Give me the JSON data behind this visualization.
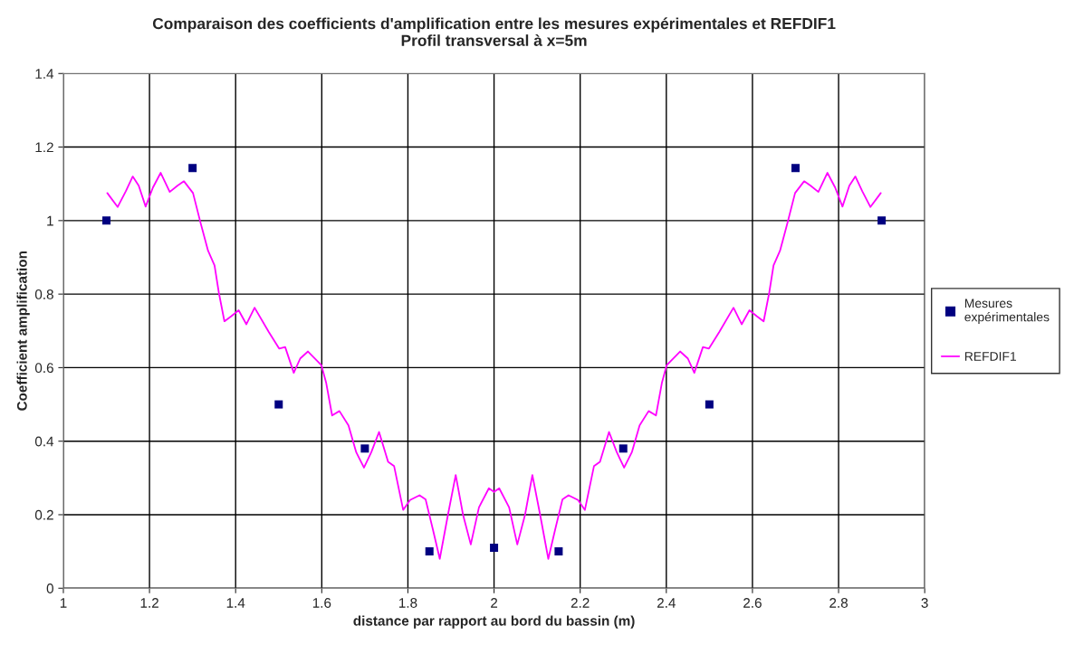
{
  "chart_data": {
    "type": "line",
    "title": "Comparaison des coefficients d'amplification entre les mesures expérimentales et REFDIF1",
    "subtitle": "Profil transversal à x=5m",
    "xlabel": "distance par rapport au bord du bassin (m)",
    "ylabel": "Coefficient amplification",
    "xlim": [
      1,
      3
    ],
    "xticks": [
      1,
      1.2,
      1.4,
      1.6,
      1.8,
      2,
      2.2,
      2.4,
      2.6,
      2.8,
      3
    ],
    "ylim": [
      0,
      1.4
    ],
    "yticks": [
      0,
      0.2,
      0.4,
      0.6,
      0.8,
      1,
      1.2,
      1.4
    ],
    "grid": true,
    "legend": "right",
    "series": [
      {
        "name": "Mesures expérimentales",
        "type": "scatter",
        "marker": "square",
        "color": "#000080",
        "x": [
          1.1,
          1.3,
          1.5,
          1.7,
          1.85,
          2.0,
          2.15,
          2.3,
          2.5,
          2.7,
          2.9
        ],
        "values": [
          1.0,
          1.143,
          0.5,
          0.38,
          0.1,
          0.11,
          0.1,
          0.38,
          0.5,
          1.143,
          1.0
        ]
      },
      {
        "name": "REFDIF1",
        "marker": "none",
        "line_style": "solid",
        "color": "#ff00ff",
        "x": [
          1.102,
          1.126,
          1.145,
          1.161,
          1.175,
          1.191,
          1.208,
          1.226,
          1.247,
          1.265,
          1.28,
          1.301,
          1.319,
          1.336,
          1.351,
          1.361,
          1.374,
          1.39,
          1.407,
          1.425,
          1.444,
          1.477,
          1.501,
          1.515,
          1.535,
          1.55,
          1.568,
          1.599,
          1.61,
          1.624,
          1.641,
          1.662,
          1.68,
          1.698,
          1.715,
          1.733,
          1.754,
          1.768,
          1.789,
          1.805,
          1.827,
          1.841,
          1.858,
          1.874,
          1.893,
          1.911,
          1.928,
          1.946,
          1.965,
          1.988,
          2.0,
          2.012,
          2.035,
          2.054,
          2.072,
          2.089,
          2.107,
          2.126,
          2.142,
          2.159,
          2.173,
          2.195,
          2.211,
          2.232,
          2.246,
          2.267,
          2.285,
          2.302,
          2.32,
          2.338,
          2.359,
          2.376,
          2.39,
          2.401,
          2.432,
          2.45,
          2.465,
          2.485,
          2.499,
          2.523,
          2.556,
          2.575,
          2.593,
          2.61,
          2.626,
          2.639,
          2.649,
          2.664,
          2.681,
          2.699,
          2.72,
          2.735,
          2.753,
          2.774,
          2.792,
          2.809,
          2.825,
          2.839,
          2.855,
          2.874,
          2.898
        ],
        "values": [
          1.075,
          1.037,
          1.08,
          1.12,
          1.095,
          1.038,
          1.09,
          1.13,
          1.078,
          1.095,
          1.107,
          1.075,
          0.992,
          0.918,
          0.878,
          0.804,
          0.726,
          0.74,
          0.756,
          0.718,
          0.763,
          0.697,
          0.652,
          0.656,
          0.586,
          0.625,
          0.644,
          0.607,
          0.56,
          0.47,
          0.482,
          0.443,
          0.37,
          0.328,
          0.37,
          0.425,
          0.344,
          0.332,
          0.213,
          0.24,
          0.253,
          0.242,
          0.16,
          0.08,
          0.2,
          0.308,
          0.2,
          0.119,
          0.22,
          0.272,
          0.262,
          0.272,
          0.22,
          0.119,
          0.2,
          0.308,
          0.2,
          0.08,
          0.16,
          0.242,
          0.253,
          0.24,
          0.213,
          0.332,
          0.344,
          0.425,
          0.37,
          0.328,
          0.37,
          0.443,
          0.482,
          0.47,
          0.56,
          0.607,
          0.644,
          0.625,
          0.586,
          0.656,
          0.652,
          0.697,
          0.763,
          0.718,
          0.756,
          0.74,
          0.726,
          0.804,
          0.878,
          0.918,
          0.992,
          1.075,
          1.107,
          1.095,
          1.078,
          1.13,
          1.09,
          1.038,
          1.095,
          1.12,
          1.08,
          1.037,
          1.075
        ]
      }
    ]
  }
}
